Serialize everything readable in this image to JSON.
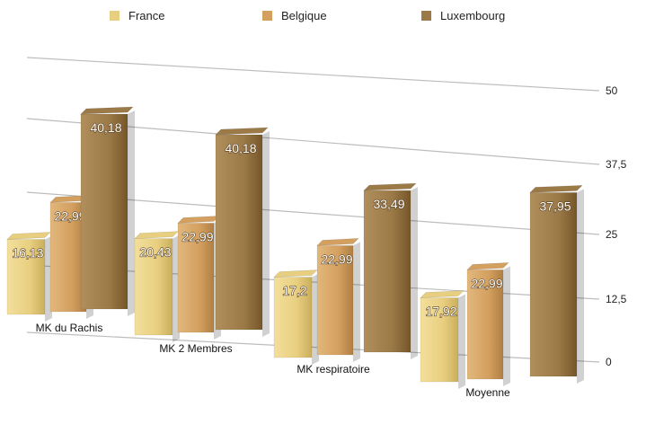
{
  "chart_data": {
    "type": "bar",
    "categories": [
      "MK du Rachis",
      "MK 2 Membres",
      "MK respiratoire",
      "Moyenne"
    ],
    "series": [
      {
        "name": "France",
        "values": [
          16.13,
          20.43,
          17.2,
          17.92
        ],
        "labels": [
          "16,13",
          "20,43",
          "17,2",
          "17,92"
        ],
        "color": "#e8cf7f"
      },
      {
        "name": "Belgique",
        "values": [
          22.99,
          22.99,
          22.99,
          22.99
        ],
        "labels": [
          "22,99",
          "22,99",
          "22,99",
          "22,99"
        ],
        "color": "#d3a060"
      },
      {
        "name": "Luxembourg",
        "values": [
          40.18,
          40.18,
          33.49,
          37.95
        ],
        "labels": [
          "40,18",
          "40,18",
          "33,49",
          "37,95"
        ],
        "color": "#9c7a48"
      }
    ],
    "yticks": [
      "0",
      "12,5",
      "25",
      "37,5",
      "50"
    ],
    "ylim": [
      0,
      50
    ],
    "grid": true,
    "legend": "top"
  }
}
